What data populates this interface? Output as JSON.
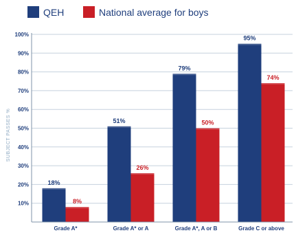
{
  "colors": {
    "qeh": "#1f3e7c",
    "national": "#c91f26",
    "grid": "#c5d1dd",
    "axis": "#7f93a8",
    "tick_text": "#1f3e7c",
    "ylabel_text": "#8ea9c2",
    "legend_text": "#1f3e7c",
    "category_text": "#1f3e7c"
  },
  "chart_data": {
    "type": "bar",
    "categories": [
      "Grade A*",
      "Grade A* or A",
      "Grade A*, A or B",
      "Grade C or above"
    ],
    "series": [
      {
        "name": "QEH",
        "values": [
          18,
          51,
          79,
          95
        ],
        "labels": [
          "18%",
          "51%",
          "79%",
          "95%"
        ],
        "color_key": "qeh"
      },
      {
        "name": "National average for boys",
        "values": [
          8,
          26,
          50,
          74
        ],
        "labels": [
          "8%",
          "26%",
          "50%",
          "74%"
        ],
        "color_key": "national"
      }
    ],
    "ylabel": "SUBJECT PASSES %",
    "xlabel": "",
    "ylim": [
      0,
      100
    ],
    "yticks": [
      "10%",
      "20%",
      "30%",
      "40%",
      "50%",
      "60%",
      "70%",
      "80%",
      "90%",
      "100%"
    ],
    "ytick_values": [
      10,
      20,
      30,
      40,
      50,
      60,
      70,
      80,
      90,
      100
    ],
    "grid": true,
    "legend_position": "top-left"
  }
}
